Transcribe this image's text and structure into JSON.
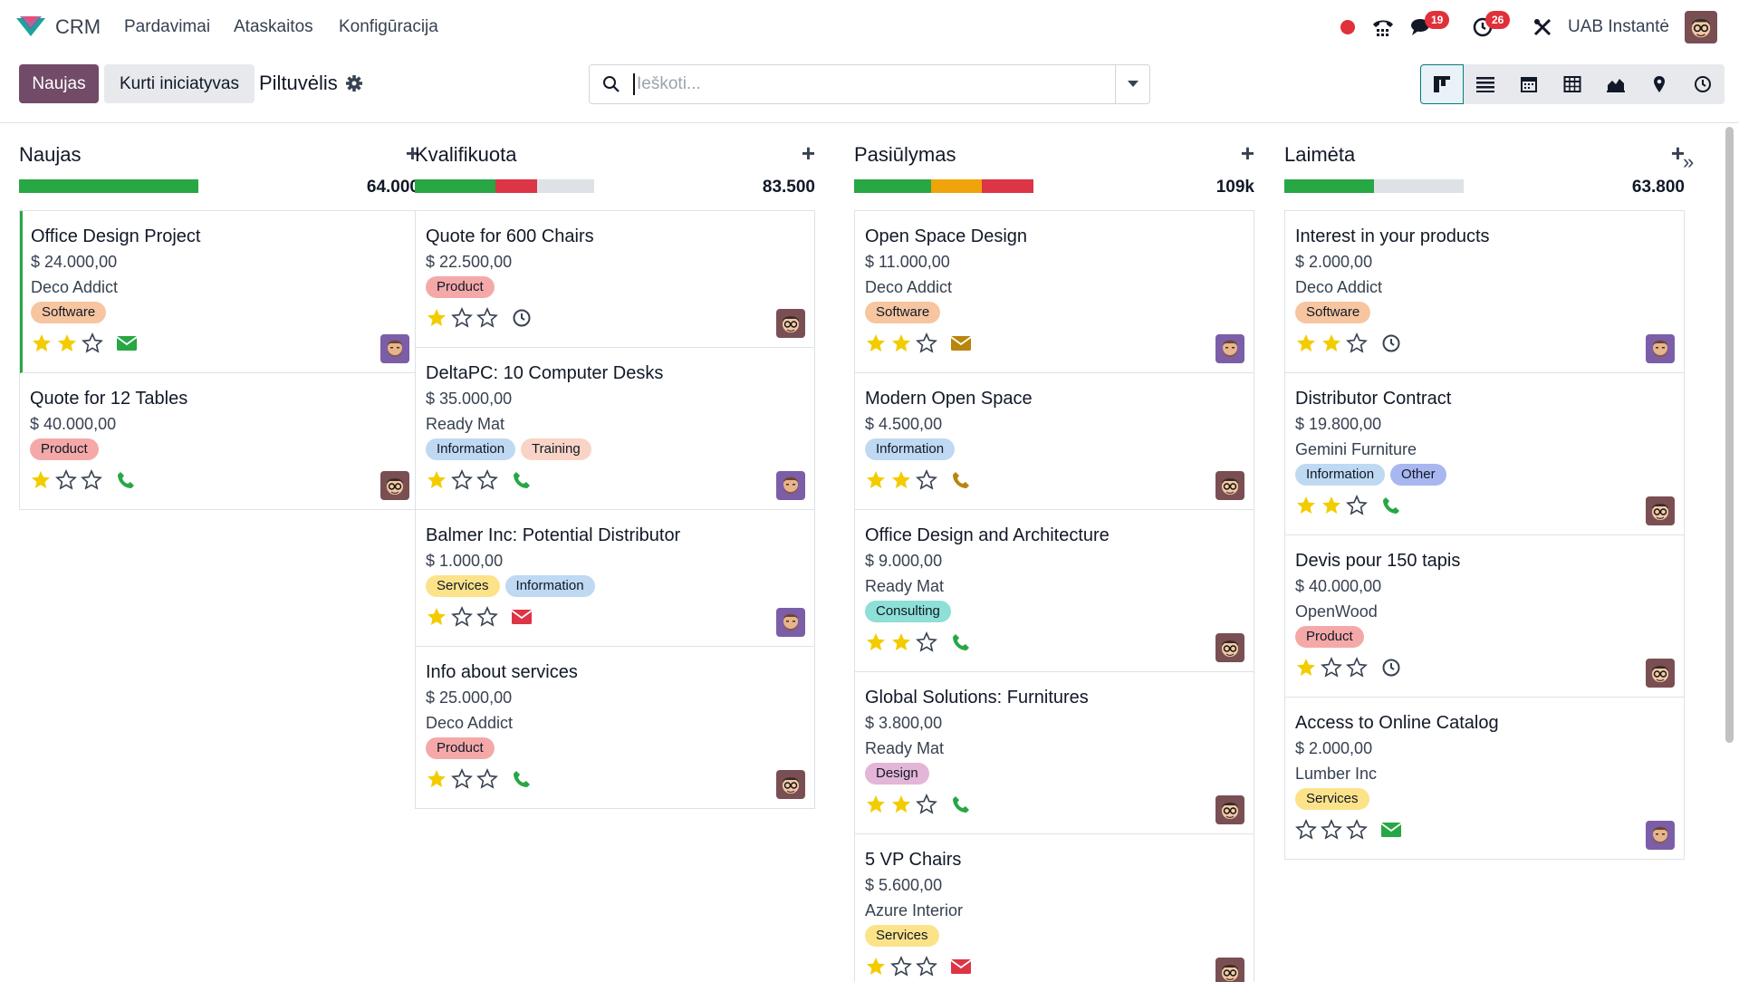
{
  "nav": {
    "app_name": "CRM",
    "menu": [
      "Pardavimai",
      "Ataskaitos",
      "Konfigūracija"
    ],
    "messages_count": "19",
    "activities_count": "26",
    "company": "UAB Instantė"
  },
  "controls": {
    "new_label": "Naujas",
    "generate_label": "Kurti iniciatyvas",
    "breadcrumb": "Piltuvėlis",
    "search_placeholder": "Ieškoti..."
  },
  "colors": {
    "primary": "#714b67",
    "green": "#28a745",
    "red": "#dc3545",
    "orange": "#f0a30a",
    "grey": "#dee2e6",
    "star": "#f3cc00",
    "accent": "#017e84"
  },
  "columns": [
    {
      "title": "Naujas",
      "total": "64.000",
      "progress": [
        {
          "color": "green",
          "fraction": 1.0
        }
      ],
      "cards": [
        {
          "title": "Office Design Project",
          "amount": "$ 24.000,00",
          "partner": "Deco Addict",
          "tags": [
            {
              "label": "Software",
              "color": "#f7c59f"
            }
          ],
          "stars": 2,
          "activity": "envelope-icon",
          "activity_color": "#28a745",
          "avatar": "bearded",
          "active": true
        },
        {
          "title": "Quote for 12 Tables",
          "amount": "$ 40.000,00",
          "partner": "",
          "tags": [
            {
              "label": "Product",
              "color": "#f4a9a8"
            }
          ],
          "stars": 1,
          "activity": "phone-icon",
          "activity_color": "#28a745",
          "avatar": "glasses",
          "active": false
        }
      ]
    },
    {
      "title": "Kvalifikuota",
      "total": "83.500",
      "progress": [
        {
          "color": "green",
          "fraction": 0.45
        },
        {
          "color": "red",
          "fraction": 0.23
        },
        {
          "color": "grey",
          "fraction": 0.32
        }
      ],
      "cards": [
        {
          "title": "Quote for 600 Chairs",
          "amount": "$ 22.500,00",
          "partner": "",
          "tags": [
            {
              "label": "Product",
              "color": "#f4a9a8"
            }
          ],
          "stars": 1,
          "activity": "clock-icon",
          "activity_color": "#374151",
          "avatar": "glasses"
        },
        {
          "title": "DeltaPC: 10 Computer Desks",
          "amount": "$ 35.000,00",
          "partner": "Ready Mat",
          "tags": [
            {
              "label": "Information",
              "color": "#bfd9f2"
            },
            {
              "label": "Training",
              "color": "#f9d4c6"
            }
          ],
          "stars": 1,
          "activity": "phone-icon",
          "activity_color": "#28a745",
          "avatar": "bearded"
        },
        {
          "title": "Balmer Inc: Potential Distributor",
          "amount": "$ 1.000,00",
          "partner": "",
          "tags": [
            {
              "label": "Services",
              "color": "#fce38a"
            },
            {
              "label": "Information",
              "color": "#bfd9f2"
            }
          ],
          "stars": 1,
          "activity": "envelope-icon",
          "activity_color": "#dc3545",
          "avatar": "bearded"
        },
        {
          "title": "Info about services",
          "amount": "$ 25.000,00",
          "partner": "Deco Addict",
          "tags": [
            {
              "label": "Product",
              "color": "#f4a9a8"
            }
          ],
          "stars": 1,
          "activity": "phone-icon",
          "activity_color": "#28a745",
          "avatar": "glasses"
        }
      ]
    },
    {
      "title": "Pasiūlymas",
      "total": "109k",
      "progress": [
        {
          "color": "green",
          "fraction": 0.43
        },
        {
          "color": "orange",
          "fraction": 0.28
        },
        {
          "color": "red",
          "fraction": 0.29
        }
      ],
      "cards": [
        {
          "title": "Open Space Design",
          "amount": "$ 11.000,00",
          "partner": "Deco Addict",
          "tags": [
            {
              "label": "Software",
              "color": "#f7c59f"
            }
          ],
          "stars": 2,
          "activity": "envelope-icon",
          "activity_color": "#b8860b",
          "avatar": "bearded"
        },
        {
          "title": "Modern Open Space",
          "amount": "$ 4.500,00",
          "partner": "",
          "tags": [
            {
              "label": "Information",
              "color": "#bfd9f2"
            }
          ],
          "stars": 2,
          "activity": "phone-icon",
          "activity_color": "#b8860b",
          "avatar": "glasses"
        },
        {
          "title": "Office Design and Architecture",
          "amount": "$ 9.000,00",
          "partner": "Ready Mat",
          "tags": [
            {
              "label": "Consulting",
              "color": "#8ee0d6"
            }
          ],
          "stars": 2,
          "activity": "phone-icon",
          "activity_color": "#28a745",
          "avatar": "glasses"
        },
        {
          "title": "Global Solutions: Furnitures",
          "amount": "$ 3.800,00",
          "partner": "Ready Mat",
          "tags": [
            {
              "label": "Design",
              "color": "#e3b5d7"
            }
          ],
          "stars": 2,
          "activity": "phone-icon",
          "activity_color": "#28a745",
          "avatar": "glasses"
        },
        {
          "title": "5 VP Chairs",
          "amount": "$ 5.600,00",
          "partner": "Azure Interior",
          "tags": [
            {
              "label": "Services",
              "color": "#fce38a"
            }
          ],
          "stars": 1,
          "activity": "envelope-icon",
          "activity_color": "#dc3545",
          "avatar": "glasses"
        }
      ]
    },
    {
      "title": "Laimėta",
      "total": "63.800",
      "progress": [
        {
          "color": "green",
          "fraction": 0.5
        },
        {
          "color": "grey",
          "fraction": 0.5
        }
      ],
      "cards": [
        {
          "title": "Interest in your products",
          "amount": "$ 2.000,00",
          "partner": "Deco Addict",
          "tags": [
            {
              "label": "Software",
              "color": "#f7c59f"
            }
          ],
          "stars": 2,
          "activity": "clock-icon",
          "activity_color": "#374151",
          "avatar": "bearded"
        },
        {
          "title": "Distributor Contract",
          "amount": "$ 19.800,00",
          "partner": "Gemini Furniture",
          "tags": [
            {
              "label": "Information",
              "color": "#bfd9f2"
            },
            {
              "label": "Other",
              "color": "#a9b7f0"
            }
          ],
          "stars": 2,
          "activity": "phone-icon",
          "activity_color": "#28a745",
          "avatar": "glasses"
        },
        {
          "title": "Devis pour 150 tapis",
          "amount": "$ 40.000,00",
          "partner": "OpenWood",
          "tags": [
            {
              "label": "Product",
              "color": "#f4a9a8"
            }
          ],
          "stars": 1,
          "activity": "clock-icon",
          "activity_color": "#374151",
          "avatar": "glasses"
        },
        {
          "title": "Access to Online Catalog",
          "amount": "$ 2.000,00",
          "partner": "Lumber Inc",
          "tags": [
            {
              "label": "Services",
              "color": "#fce38a"
            }
          ],
          "stars": 0,
          "activity": "envelope-icon",
          "activity_color": "#28a745",
          "avatar": "bearded"
        }
      ]
    }
  ]
}
